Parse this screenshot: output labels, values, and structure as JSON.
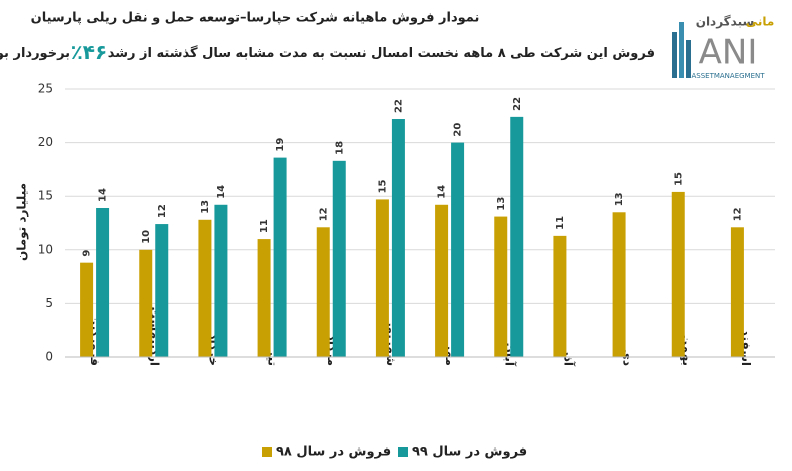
{
  "chart_data": {
    "type": "bar",
    "title": "نمودار فروش ماهیانه شرکت حپارسا–توسعه حمل و نقل ریلی پارسیان",
    "subtitle": [
      "فروش این شرکت طی ۸ ماهه نخست امسال نسبت به مدت مشابه سال گذشته از رشد",
      "۴۶٪",
      "برخوردار بوده است."
    ],
    "y_label": "میلیارد تومان",
    "categories": [
      "فروردین",
      "اردیبهشت",
      "خرداد",
      "تیر",
      "مرداد",
      "شهریور",
      "مهر",
      "آبان",
      "آذر",
      "دی",
      "بهمن",
      "اسفند"
    ],
    "series": [
      {
        "name": "فروش در سال ۹۸",
        "color": "#c9a004",
        "values": [
          8.8,
          10,
          12.8,
          11,
          12.1,
          14.7,
          14.2,
          13.1,
          11.3,
          13.5,
          15.4,
          12.1
        ],
        "value_labels": [
          "9",
          "10",
          "13",
          "11",
          "12",
          "15",
          "14",
          "13",
          "11",
          "13",
          "15",
          "12"
        ]
      },
      {
        "name": "فروش در سال ۹۹",
        "color": "#17999b",
        "values": [
          13.9,
          12.4,
          14.2,
          18.6,
          18.3,
          22.2,
          20,
          22.4,
          null,
          null,
          null,
          null
        ],
        "value_labels": [
          "14",
          "12",
          "14",
          "19",
          "18",
          "22",
          "20",
          "22",
          null,
          null,
          null,
          null
        ]
      }
    ],
    "ylim": [
      0,
      25
    ],
    "yticks": [
      0,
      5,
      10,
      15,
      20,
      25
    ],
    "grid": true,
    "legend": "bottom",
    "logo": {
      "name": "سبدگردان",
      "name2": "مانی",
      "mark": "ANI",
      "sub": "ASSETMANAEGMENT"
    }
  }
}
